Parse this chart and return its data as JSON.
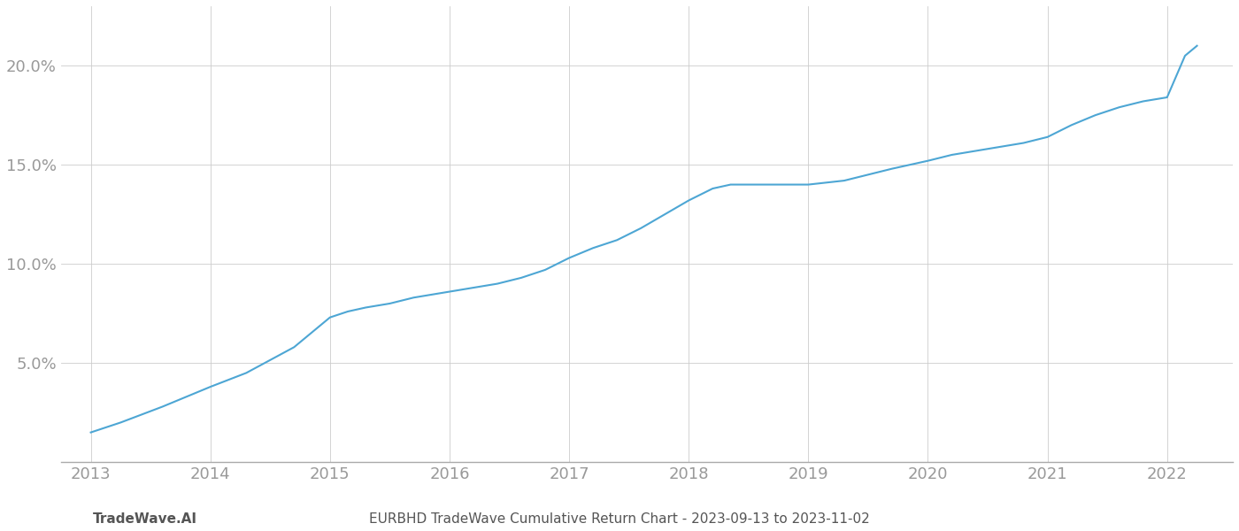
{
  "title": "EURBHD TradeWave Cumulative Return Chart - 2023-09-13 to 2023-11-02",
  "x_label_left": "TradeWave.AI",
  "line_color": "#4da6d4",
  "background_color": "#ffffff",
  "grid_color": "#cccccc",
  "x_years": [
    2013,
    2014,
    2015,
    2016,
    2017,
    2018,
    2019,
    2020,
    2021,
    2022
  ],
  "data_points": [
    [
      2013.0,
      1.5
    ],
    [
      2013.25,
      2.0
    ],
    [
      2013.6,
      2.8
    ],
    [
      2014.0,
      3.8
    ],
    [
      2014.3,
      4.5
    ],
    [
      2014.7,
      5.8
    ],
    [
      2015.0,
      7.3
    ],
    [
      2015.15,
      7.6
    ],
    [
      2015.3,
      7.8
    ],
    [
      2015.5,
      8.0
    ],
    [
      2015.7,
      8.3
    ],
    [
      2016.0,
      8.6
    ],
    [
      2016.2,
      8.8
    ],
    [
      2016.4,
      9.0
    ],
    [
      2016.6,
      9.3
    ],
    [
      2016.8,
      9.7
    ],
    [
      2017.0,
      10.3
    ],
    [
      2017.2,
      10.8
    ],
    [
      2017.4,
      11.2
    ],
    [
      2017.6,
      11.8
    ],
    [
      2017.8,
      12.5
    ],
    [
      2018.0,
      13.2
    ],
    [
      2018.2,
      13.8
    ],
    [
      2018.35,
      14.0
    ],
    [
      2018.6,
      14.0
    ],
    [
      2018.8,
      14.0
    ],
    [
      2019.0,
      14.0
    ],
    [
      2019.15,
      14.1
    ],
    [
      2019.3,
      14.2
    ],
    [
      2019.5,
      14.5
    ],
    [
      2019.7,
      14.8
    ],
    [
      2020.0,
      15.2
    ],
    [
      2020.2,
      15.5
    ],
    [
      2020.4,
      15.7
    ],
    [
      2020.6,
      15.9
    ],
    [
      2020.8,
      16.1
    ],
    [
      2021.0,
      16.4
    ],
    [
      2021.2,
      17.0
    ],
    [
      2021.4,
      17.5
    ],
    [
      2021.6,
      17.9
    ],
    [
      2021.8,
      18.2
    ],
    [
      2022.0,
      18.4
    ],
    [
      2022.15,
      20.5
    ],
    [
      2022.25,
      21.0
    ]
  ],
  "ylim": [
    0,
    23
  ],
  "yticks": [
    5.0,
    10.0,
    15.0,
    20.0
  ],
  "ytick_labels": [
    "5.0%",
    "10.0%",
    "15.0%",
    "20.0%"
  ],
  "xlim": [
    2012.75,
    2022.55
  ],
  "title_fontsize": 11,
  "tick_fontsize": 13,
  "label_fontsize": 11,
  "line_width": 1.5,
  "tick_color": "#999999",
  "footer_left_text": "TradeWave.AI",
  "footer_left_bold": true
}
